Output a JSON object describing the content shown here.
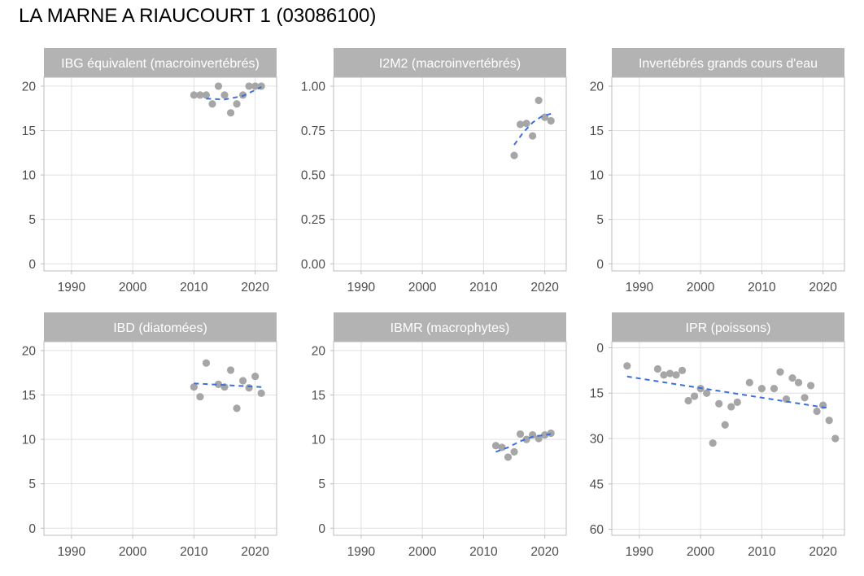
{
  "page": {
    "title": "LA MARNE A RIAUCOURT 1 (03086100)"
  },
  "colors": {
    "points": "#A6A6A6",
    "trend": "#3B6FE0",
    "strip": "#B3B3B3",
    "strip_text": "#FFFFFF",
    "grid": "#E0E0E0",
    "border": "#BDBDBD",
    "tick_text": "#4D4D4D"
  },
  "chart_data": [
    {
      "type": "scatter",
      "title": "IBG équivalent (macroinvertébrés)",
      "xlim": [
        1985.5,
        2023.5
      ],
      "x_ticks": [
        "1990",
        "2000",
        "2010",
        "2020"
      ],
      "ylim": [
        -0.8,
        21
      ],
      "y_ticks": [
        "0",
        "5",
        "10",
        "15",
        "20"
      ],
      "y_reversed": false,
      "points": [
        [
          2010,
          19
        ],
        [
          2011,
          19
        ],
        [
          2012,
          19
        ],
        [
          2013,
          18
        ],
        [
          2014,
          20
        ],
        [
          2015,
          19
        ],
        [
          2016,
          17
        ],
        [
          2017,
          18
        ],
        [
          2018,
          19
        ],
        [
          2019,
          20
        ],
        [
          2020,
          20
        ],
        [
          2021,
          20
        ]
      ],
      "trend": [
        [
          2012,
          18.6
        ],
        [
          2015,
          18.5
        ],
        [
          2018,
          18.9
        ],
        [
          2021,
          19.9
        ]
      ]
    },
    {
      "type": "scatter",
      "title": "I2M2 (macroinvertébrés)",
      "xlim": [
        1985.5,
        2023.5
      ],
      "x_ticks": [
        "1990",
        "2000",
        "2010",
        "2020"
      ],
      "ylim": [
        -0.04,
        1.05
      ],
      "y_ticks": [
        "0.00",
        "0.25",
        "0.50",
        "0.75",
        "1.00"
      ],
      "y_reversed": false,
      "points": [
        [
          2015,
          0.61
        ],
        [
          2016,
          0.785
        ],
        [
          2017,
          0.79
        ],
        [
          2018,
          0.72
        ],
        [
          2019,
          0.92
        ],
        [
          2020,
          0.825
        ],
        [
          2021,
          0.805
        ]
      ],
      "trend": [
        [
          2015,
          0.67
        ],
        [
          2016.5,
          0.74
        ],
        [
          2018,
          0.795
        ],
        [
          2019.5,
          0.83
        ],
        [
          2021,
          0.845
        ]
      ]
    },
    {
      "type": "scatter",
      "title": "Invertébrés grands cours d'eau",
      "xlim": [
        1985.5,
        2023.5
      ],
      "x_ticks": [
        "1990",
        "2000",
        "2010",
        "2020"
      ],
      "ylim": [
        -0.8,
        21
      ],
      "y_ticks": [
        "0",
        "5",
        "10",
        "15",
        "20"
      ],
      "y_reversed": false,
      "points": [],
      "trend": []
    },
    {
      "type": "scatter",
      "title": "IBD (diatomées)",
      "xlim": [
        1985.5,
        2023.5
      ],
      "x_ticks": [
        "1990",
        "2000",
        "2010",
        "2020"
      ],
      "ylim": [
        -0.8,
        21
      ],
      "y_ticks": [
        "0",
        "5",
        "10",
        "15",
        "20"
      ],
      "y_reversed": false,
      "points": [
        [
          2010,
          15.9
        ],
        [
          2011,
          14.8
        ],
        [
          2012,
          18.6
        ],
        [
          2014,
          16.2
        ],
        [
          2015,
          15.9
        ],
        [
          2016,
          17.8
        ],
        [
          2017,
          13.5
        ],
        [
          2018,
          16.6
        ],
        [
          2019,
          15.8
        ],
        [
          2020,
          17.1
        ],
        [
          2021,
          15.2
        ]
      ],
      "trend": [
        [
          2010,
          16.3
        ],
        [
          2021,
          15.9
        ]
      ]
    },
    {
      "type": "scatter",
      "title": "IBMR (macrophytes)",
      "xlim": [
        1985.5,
        2023.5
      ],
      "x_ticks": [
        "1990",
        "2000",
        "2010",
        "2020"
      ],
      "ylim": [
        -0.8,
        21
      ],
      "y_ticks": [
        "0",
        "5",
        "10",
        "15",
        "20"
      ],
      "y_reversed": false,
      "points": [
        [
          2012,
          9.3
        ],
        [
          2013,
          9.1
        ],
        [
          2014,
          8.0
        ],
        [
          2015,
          8.6
        ],
        [
          2016,
          10.6
        ],
        [
          2017,
          10.0
        ],
        [
          2018,
          10.5
        ],
        [
          2019,
          10.1
        ],
        [
          2020,
          10.5
        ],
        [
          2021,
          10.7
        ]
      ],
      "trend": [
        [
          2012,
          8.6
        ],
        [
          2014,
          9.1
        ],
        [
          2016,
          9.8
        ],
        [
          2018,
          10.3
        ],
        [
          2021,
          10.6
        ]
      ]
    },
    {
      "type": "scatter",
      "title": "IPR (poissons)",
      "xlim": [
        1985.5,
        2023.5
      ],
      "x_ticks": [
        "1990",
        "2000",
        "2010",
        "2020"
      ],
      "ylim": [
        -2,
        62
      ],
      "y_ticks": [
        "0",
        "15",
        "30",
        "45",
        "60"
      ],
      "y_reversed": true,
      "points": [
        [
          1988,
          6
        ],
        [
          1993,
          7
        ],
        [
          1994,
          9
        ],
        [
          1995,
          8.5
        ],
        [
          1996,
          9
        ],
        [
          1997,
          7.5
        ],
        [
          1998,
          17.5
        ],
        [
          1999,
          16
        ],
        [
          2000,
          13.5
        ],
        [
          2001,
          15
        ],
        [
          2002,
          31.5
        ],
        [
          2003,
          18.5
        ],
        [
          2004,
          25.5
        ],
        [
          2005,
          19.5
        ],
        [
          2006,
          18
        ],
        [
          2008,
          11.5
        ],
        [
          2010,
          13.5
        ],
        [
          2012,
          13.5
        ],
        [
          2013,
          8
        ],
        [
          2014,
          17
        ],
        [
          2015,
          10
        ],
        [
          2016,
          11.5
        ],
        [
          2017,
          16.5
        ],
        [
          2018,
          12.5
        ],
        [
          2019,
          21
        ],
        [
          2020,
          19
        ],
        [
          2021,
          24
        ],
        [
          2022,
          30
        ]
      ],
      "trend": [
        [
          1988,
          9.5
        ],
        [
          2021,
          20
        ]
      ]
    }
  ]
}
